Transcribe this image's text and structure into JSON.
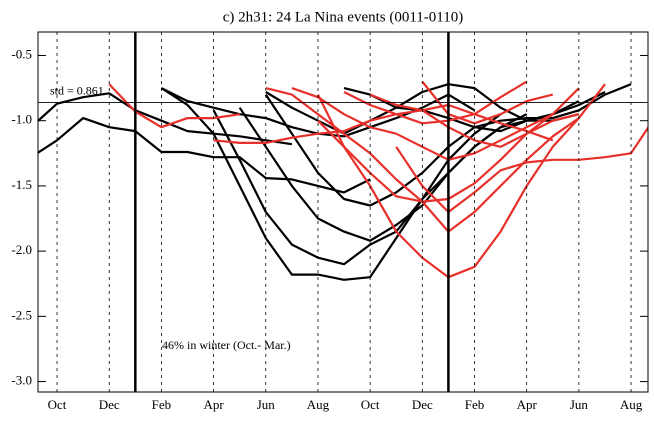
{
  "chart_data": {
    "type": "line",
    "title": "c) 2h31: 24 La Nina events (0011-0110)",
    "annotation": "46% in winter (Oct.- Mar.)",
    "std_label": "std = 0.861",
    "std_line": -0.861,
    "vlines": [
      4,
      16
    ],
    "x": [
      0,
      1,
      2,
      3,
      4,
      5,
      6,
      7,
      8,
      9,
      10,
      11,
      12,
      13,
      14,
      15,
      16,
      17,
      18,
      19,
      20,
      21,
      22,
      23,
      24
    ],
    "xlim": [
      0.27,
      23.65
    ],
    "xticks": [
      {
        "value": 1,
        "label": "Oct"
      },
      {
        "value": 3,
        "label": "Dec"
      },
      {
        "value": 5,
        "label": "Feb"
      },
      {
        "value": 7,
        "label": "Apr"
      },
      {
        "value": 9,
        "label": "Jun"
      },
      {
        "value": 11,
        "label": "Aug"
      },
      {
        "value": 13,
        "label": "Oct"
      },
      {
        "value": 15,
        "label": "Dec"
      },
      {
        "value": 17,
        "label": "Feb"
      },
      {
        "value": 19,
        "label": "Apr"
      },
      {
        "value": 21,
        "label": "Jun"
      },
      {
        "value": 23,
        "label": "Aug"
      }
    ],
    "ylim": [
      -3.08,
      -0.32
    ],
    "yticks": [
      -0.5,
      {
        "value": -1,
        "label": "-1.0"
      },
      -1.5,
      {
        "value": -2,
        "label": "-2.0"
      },
      -2.5,
      {
        "value": -3,
        "label": "-3.0"
      }
    ],
    "grid": true,
    "series": [
      {
        "color": "#000000",
        "values": [
          -1.05,
          -0.87,
          -0.82,
          -0.79,
          -0.92,
          -1.0,
          -1.08,
          -1.1,
          -1.12,
          -1.15,
          -1.18,
          null,
          null,
          null,
          null,
          null,
          null,
          null,
          null,
          null,
          null,
          null,
          null,
          null,
          null
        ]
      },
      {
        "color": "#000000",
        "values": [
          -1.28,
          -1.15,
          -0.98,
          -1.05,
          -1.08,
          -1.24,
          -1.24,
          -1.28,
          -1.28,
          -1.44,
          -1.45,
          -1.5,
          -1.55,
          -1.45,
          null,
          null,
          null,
          null,
          null,
          null,
          null,
          null,
          null,
          null,
          null
        ]
      },
      {
        "color": "#000000",
        "values": [
          null,
          null,
          null,
          null,
          null,
          -0.75,
          -0.88,
          -1.1,
          -1.5,
          -1.9,
          -2.18,
          -2.18,
          -2.22,
          -2.2,
          -1.9,
          -1.6,
          -1.3,
          -1.1,
          -0.95,
          null,
          null,
          null,
          null,
          null,
          null
        ]
      },
      {
        "color": "#000000",
        "values": [
          null,
          null,
          null,
          null,
          null,
          null,
          null,
          -0.92,
          -1.3,
          -1.7,
          -1.95,
          -2.05,
          -2.1,
          -1.95,
          -1.85,
          -1.6,
          -1.4,
          -1.2,
          -1.05,
          -0.95,
          null,
          null,
          null,
          null,
          null
        ]
      },
      {
        "color": "#000000",
        "values": [
          null,
          null,
          null,
          null,
          null,
          null,
          null,
          null,
          -0.9,
          -1.2,
          -1.5,
          -1.75,
          -1.85,
          -1.92,
          -1.8,
          -1.65,
          -1.4,
          -1.2,
          -1.05,
          -1.0,
          -0.95,
          -0.85,
          null,
          null,
          null
        ]
      },
      {
        "color": "#000000",
        "values": [
          null,
          null,
          null,
          null,
          null,
          null,
          null,
          null,
          null,
          -0.8,
          -1.1,
          -1.4,
          -1.6,
          -1.65,
          -1.55,
          -1.4,
          -1.2,
          -1.05,
          -1.0,
          -0.98,
          -0.98,
          -0.92,
          -0.8,
          -0.72,
          null
        ]
      },
      {
        "color": "#000000",
        "values": [
          null,
          null,
          null,
          null,
          null,
          -0.75,
          -0.85,
          -0.9,
          -0.95,
          -0.98,
          -1.05,
          -1.1,
          -1.12,
          -1.05,
          -0.98,
          -0.9,
          -0.8,
          -0.92,
          null,
          null,
          null,
          null,
          null,
          null,
          null
        ]
      },
      {
        "color": "#000000",
        "values": [
          null,
          null,
          null,
          null,
          null,
          null,
          null,
          null,
          null,
          -0.78,
          -0.9,
          -1.0,
          -1.1,
          -1.0,
          -0.9,
          -0.78,
          -0.72,
          -0.75,
          -0.9,
          -1.0,
          -1.0,
          -0.95,
          null,
          null,
          null
        ]
      },
      {
        "color": "#000000",
        "values": [
          null,
          null,
          null,
          null,
          null,
          null,
          null,
          null,
          null,
          null,
          null,
          null,
          -0.75,
          -0.8,
          -0.9,
          -0.92,
          -0.98,
          -1.05,
          -1.08,
          -1.0,
          -0.95,
          -0.88,
          -0.78,
          null,
          null
        ]
      },
      {
        "color": "#e8302a",
        "values": [
          null,
          null,
          null,
          -0.72,
          -0.93,
          -1.05,
          -0.98,
          -0.98,
          -0.95,
          null,
          null,
          null,
          null,
          null,
          null,
          null,
          null,
          null,
          null,
          null,
          null,
          null,
          null,
          null,
          null
        ]
      },
      {
        "color": "#e8302a",
        "values": [
          null,
          null,
          null,
          null,
          null,
          null,
          null,
          -1.15,
          -1.17,
          -1.17,
          -1.13,
          -1.1,
          -1.08,
          -1.0,
          -0.95,
          -0.92,
          -0.88,
          -0.95,
          -1.02,
          -1.08,
          -1.15,
          null,
          null,
          null,
          null
        ]
      },
      {
        "color": "#e8302a",
        "values": [
          null,
          null,
          null,
          null,
          null,
          null,
          null,
          null,
          null,
          null,
          null,
          null,
          null,
          null,
          -1.2,
          -1.5,
          -1.7,
          -1.55,
          -1.38,
          -1.32,
          -1.3,
          -1.3,
          -1.28,
          -1.25,
          -0.95
        ]
      },
      {
        "color": "#e8302a",
        "values": [
          null,
          null,
          null,
          null,
          null,
          null,
          null,
          null,
          null,
          null,
          null,
          -0.8,
          -1.2,
          -1.5,
          -1.85,
          -2.05,
          -2.2,
          -2.12,
          -1.85,
          -1.5,
          -1.2,
          -0.98,
          -0.72,
          null,
          null
        ]
      },
      {
        "color": "#e8302a",
        "values": [
          null,
          null,
          null,
          null,
          null,
          null,
          null,
          null,
          null,
          null,
          null,
          -1.0,
          -1.2,
          -1.4,
          -1.58,
          -1.62,
          -1.6,
          -1.48,
          -1.3,
          -1.1,
          -0.95,
          -0.75,
          null,
          null,
          null
        ]
      },
      {
        "color": "#e8302a",
        "values": [
          null,
          null,
          null,
          null,
          null,
          null,
          null,
          null,
          null,
          -0.75,
          -0.8,
          -0.95,
          -1.1,
          -1.25,
          -1.45,
          -1.62,
          -1.85,
          -1.7,
          -1.5,
          -1.3,
          -1.12,
          -0.98,
          null,
          null,
          null
        ]
      },
      {
        "color": "#e8302a",
        "values": [
          null,
          null,
          null,
          null,
          null,
          null,
          null,
          null,
          null,
          null,
          -0.75,
          -0.82,
          -0.95,
          -1.05,
          -1.1,
          -1.2,
          -1.3,
          -1.25,
          -1.15,
          -1.05,
          -0.95,
          null,
          null,
          null,
          null
        ]
      },
      {
        "color": "#e8302a",
        "values": [
          null,
          null,
          null,
          null,
          null,
          null,
          null,
          null,
          null,
          null,
          null,
          null,
          -0.78,
          -0.88,
          -0.95,
          -1.02,
          -1.0,
          -0.95,
          -0.82,
          -0.7,
          null,
          null,
          null,
          null,
          null
        ]
      },
      {
        "color": "#e8302a",
        "values": [
          null,
          null,
          null,
          null,
          null,
          null,
          null,
          null,
          null,
          null,
          null,
          null,
          null,
          -0.8,
          -0.88,
          -0.92,
          -1.05,
          -1.15,
          -1.2,
          -1.1,
          -1.0,
          -0.95,
          null,
          null,
          null
        ]
      },
      {
        "color": "#e8302a",
        "values": [
          null,
          null,
          null,
          null,
          null,
          null,
          null,
          null,
          null,
          null,
          null,
          null,
          null,
          null,
          null,
          -0.7,
          -0.95,
          -1.02,
          -0.95,
          -0.85,
          -0.8,
          null,
          null,
          null,
          null
        ]
      }
    ]
  }
}
